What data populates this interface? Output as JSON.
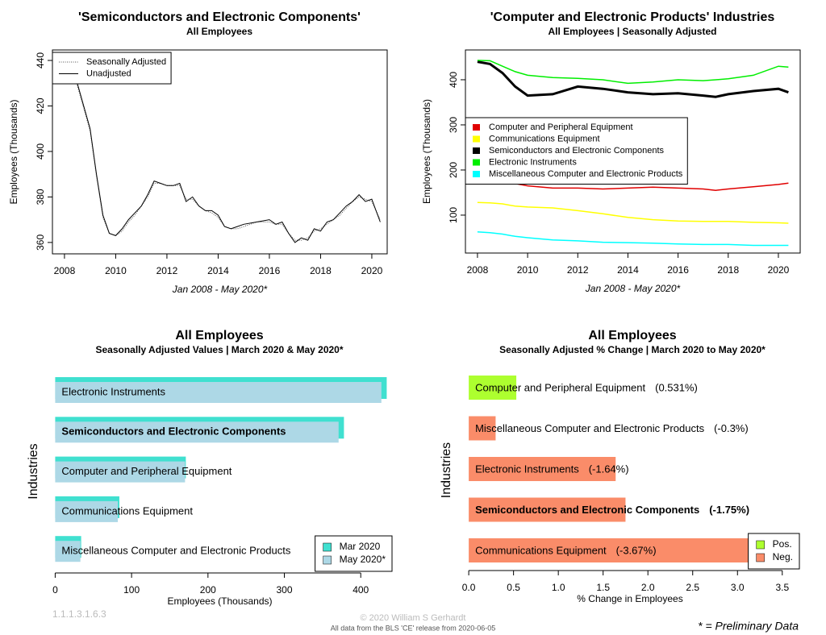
{
  "chart_data": [
    {
      "type": "line",
      "title": "'Semiconductors and Electronic Components'",
      "subtitle": "All Employees",
      "ylabel": "Employees (Thousands)",
      "xlabel": "Jan 2008 - May 2020*",
      "x": [
        2008,
        2008.5,
        2009,
        2009.25,
        2009.5,
        2009.75,
        2010,
        2010.25,
        2010.5,
        2010.75,
        2011,
        2011.25,
        2011.5,
        2011.75,
        2012,
        2012.25,
        2012.5,
        2012.75,
        2013,
        2013.25,
        2013.5,
        2013.75,
        2014,
        2014.25,
        2014.5,
        2014.75,
        2015,
        2015.5,
        2016,
        2016.25,
        2016.5,
        2016.75,
        2017,
        2017.25,
        2017.5,
        2017.75,
        2018,
        2018.25,
        2018.5,
        2018.75,
        2019,
        2019.25,
        2019.5,
        2019.75,
        2020,
        2020.33
      ],
      "series": [
        {
          "name": "Seasonally Adjusted",
          "color": "#555555",
          "dash": "dotted",
          "values": [
            436,
            429,
            409,
            389,
            371,
            364,
            363,
            365,
            369,
            372,
            376,
            380,
            386,
            386,
            385,
            385,
            385,
            379,
            379,
            376,
            374,
            373,
            371,
            367,
            366,
            366,
            367,
            369,
            369,
            368,
            368,
            364,
            361,
            361,
            362,
            365,
            366,
            368,
            370,
            372,
            375,
            378,
            380,
            379,
            378,
            370
          ]
        },
        {
          "name": "Unadjusted",
          "color": "#000000",
          "dash": "solid",
          "values": [
            437,
            430,
            410,
            390,
            372,
            364,
            363,
            366,
            370,
            373,
            376,
            381,
            387,
            386,
            385,
            385,
            386,
            378,
            380,
            376,
            374,
            374,
            372,
            367,
            366,
            367,
            368,
            369,
            370,
            368,
            369,
            364,
            360,
            362,
            361,
            366,
            365,
            369,
            370,
            373,
            376,
            378,
            381,
            378,
            379,
            369
          ]
        }
      ],
      "xlim": [
        2007.53,
        2020.6
      ],
      "xticks": [
        2008,
        2010,
        2012,
        2014,
        2016,
        2018,
        2020
      ],
      "ylim": [
        355,
        444.6
      ],
      "yticks": [
        360,
        380,
        400,
        420,
        440
      ],
      "legend": "top-left"
    },
    {
      "type": "line",
      "title": "'Computer and Electronic Products' Industries",
      "subtitle": "All Employees | Seasonally Adjusted",
      "ylabel": "Employees (Thousands)",
      "xlabel": "Jan 2008 - May 2020*",
      "x": [
        2008,
        2008.5,
        2009,
        2009.5,
        2010,
        2011,
        2012,
        2013,
        2014,
        2015,
        2016,
        2017,
        2017.5,
        2018,
        2019,
        2020,
        2020.4
      ],
      "series": [
        {
          "name": "Computer and Peripheral Equipment",
          "color": "#e00000",
          "width": 1.5,
          "values": [
            190,
            188,
            180,
            170,
            165,
            160,
            160,
            158,
            160,
            162,
            160,
            158,
            155,
            158,
            163,
            168,
            171
          ]
        },
        {
          "name": "Communications Equipment",
          "color": "#ffff00",
          "width": 1.5,
          "values": [
            128,
            127,
            125,
            120,
            118,
            116,
            110,
            103,
            95,
            90,
            87,
            86,
            86,
            86,
            84,
            83,
            82
          ]
        },
        {
          "name": "Semiconductors and Electronic Components",
          "color": "#000000",
          "width": 3,
          "values": [
            440,
            435,
            415,
            385,
            365,
            368,
            385,
            380,
            372,
            368,
            370,
            365,
            362,
            368,
            375,
            380,
            372
          ]
        },
        {
          "name": "Electronic Instruments",
          "color": "#00ee00",
          "width": 1.5,
          "values": [
            443,
            442,
            430,
            418,
            410,
            405,
            403,
            400,
            392,
            395,
            400,
            398,
            400,
            402,
            410,
            430,
            428
          ]
        },
        {
          "name": "Miscellaneous Computer and Electronic Products",
          "color": "#00ffff",
          "width": 1.5,
          "values": [
            63,
            61,
            58,
            53,
            50,
            45,
            43,
            40,
            39,
            38,
            36,
            35,
            35,
            35,
            33,
            33,
            33
          ]
        }
      ],
      "xlim": [
        2007.52,
        2020.87
      ],
      "xticks": [
        2008,
        2010,
        2012,
        2014,
        2016,
        2018,
        2020
      ],
      "ylim": [
        16,
        466
      ],
      "yticks": [
        100,
        200,
        300,
        400
      ],
      "legend": "middle-left"
    },
    {
      "type": "hbar",
      "title": "All Employees",
      "subtitle": "Seasonally Adjusted Values | March 2020 & May 2020*",
      "xlabel": "Employees (Thousands)",
      "ylabel": "Industries",
      "categories": [
        "Electronic Instruments",
        "Semiconductors and Electronic Components",
        "Computer and Peripheral Equipment",
        "Communications Equipment",
        "Miscellaneous Computer and Electronic Products"
      ],
      "highlight": 1,
      "series": [
        {
          "name": "Mar 2020",
          "color": "#40e0d0",
          "values": [
            434,
            378,
            171,
            84,
            34
          ]
        },
        {
          "name": "May 2020*",
          "color": "#add8e6",
          "values": [
            427,
            371,
            170,
            82,
            33
          ]
        }
      ],
      "xlim": [
        -11,
        442
      ],
      "xticks": [
        0,
        100,
        200,
        300,
        400
      ],
      "legend": "bottom-right"
    },
    {
      "type": "hbar-change",
      "title": "All Employees",
      "subtitle": "Seasonally Adjusted % Change | March 2020 to May 2020*",
      "xlabel": "% Change in Employees",
      "ylabel": "Industries",
      "categories": [
        "Computer and Peripheral Equipment",
        "Miscellaneous Computer and Electronic Products",
        "Electronic Instruments",
        "Semiconductors and Electronic Components",
        "Communications Equipment"
      ],
      "highlight": 3,
      "values": [
        0.531,
        -0.3,
        -1.64,
        -1.75,
        -3.67
      ],
      "value_labels": [
        "(0.531%)",
        "(-0.3%)",
        "(-1.64%)",
        "(-1.75%)",
        "(-3.67%)"
      ],
      "legend_items": [
        {
          "name": "Pos.",
          "color": "#adff2f"
        },
        {
          "name": "Neg.",
          "color": "#fa8c69"
        }
      ],
      "xlim": [
        -0.1,
        3.7
      ],
      "xticks": [
        {
          "value": 0,
          "label": "0.0"
        },
        0.5,
        {
          "value": 1,
          "label": "1.0"
        },
        1.5,
        {
          "value": 2,
          "label": "2.0"
        },
        2.5,
        {
          "value": 3,
          "label": "3.0"
        },
        3.5
      ],
      "legend": "bottom-right"
    }
  ],
  "footer": {
    "version": "1.1.1.3.1.6.3",
    "copyright": "© 2020 William S Gerhardt",
    "source": "All data from the BLS 'CE' release from 2020-06-05",
    "note": "* = Preliminary Data"
  }
}
